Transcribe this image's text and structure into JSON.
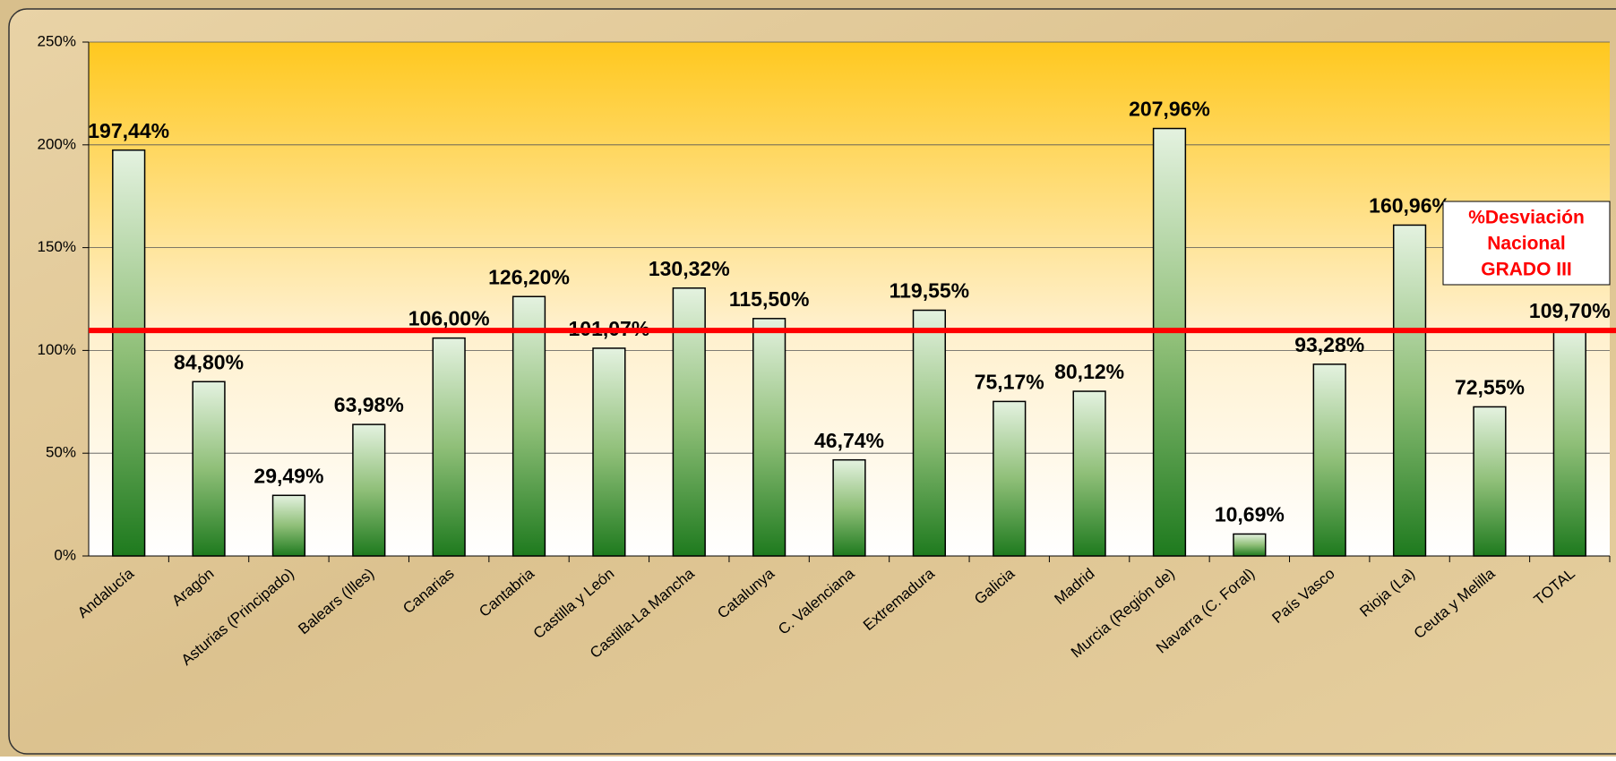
{
  "chart_data": {
    "type": "bar",
    "categories": [
      "Andalucía",
      "Aragón",
      "Asturias (Principado)",
      "Balears (Illes)",
      "Canarias",
      "Cantabria",
      "Castilla y León",
      "Castilla-La Mancha",
      "Catalunya",
      "C. Valenciana",
      "Extremadura",
      "Galicia",
      "Madrid",
      "Murcia (Región de)",
      "Navarra  (C. Foral)",
      "País Vasco",
      "Rioja (La)",
      "Ceuta y Melilla",
      "TOTAL"
    ],
    "values": [
      197.44,
      84.8,
      29.49,
      63.98,
      106.0,
      126.2,
      101.07,
      130.32,
      115.5,
      46.74,
      119.55,
      75.17,
      80.12,
      207.96,
      10.69,
      93.28,
      160.96,
      72.55,
      109.7
    ],
    "value_labels": [
      "197,44%",
      "84,80%",
      "29,49%",
      "63,98%",
      "106,00%",
      "126,20%",
      "101,07%",
      "130,32%",
      "115,50%",
      "46,74%",
      "119,55%",
      "75,17%",
      "80,12%",
      "207,96%",
      "10,69%",
      "93,28%",
      "160,96%",
      "72,55%",
      "109,70%"
    ],
    "color": "#1e7a1e",
    "ylim": [
      0,
      250
    ],
    "yticks": [
      {
        "value": 0,
        "label": "0%"
      },
      {
        "value": 50,
        "label": "50%"
      },
      {
        "value": 100,
        "label": "100%"
      },
      {
        "value": 150,
        "label": "150%"
      },
      {
        "value": 200,
        "label": "200%"
      },
      {
        "value": 250,
        "label": "250%"
      }
    ],
    "grid": true,
    "reference_line": {
      "value": 109.7,
      "color": "#ff0000"
    },
    "annotation": [
      "%Desviación",
      "Nacional",
      "GRADO III"
    ]
  }
}
